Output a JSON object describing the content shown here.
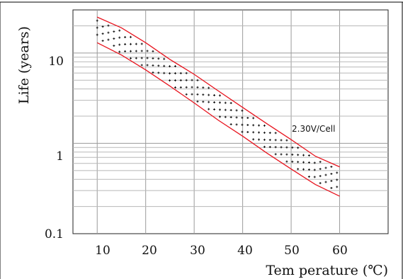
{
  "chart_data": {
    "type": "area",
    "xlabel": "Tem perature (℃)",
    "ylabel": "Life (years)",
    "x_ticks": [
      "10",
      "20",
      "30",
      "40",
      "50",
      "60"
    ],
    "y_ticks": [
      "0.1",
      "1",
      "10"
    ],
    "xlim": [
      5,
      70
    ],
    "ylim": [
      0.1,
      30
    ],
    "y_scale": "log",
    "grid": true,
    "annotation": "2.30V/Cell",
    "series": [
      {
        "x": [
          10,
          15,
          20,
          25,
          30,
          35,
          40,
          45,
          50,
          55,
          60
        ],
        "values": [
          25,
          19,
          13,
          8.5,
          5.8,
          3.8,
          2.5,
          1.65,
          1.1,
          0.72,
          0.55
        ]
      },
      {
        "x": [
          10,
          15,
          20,
          25,
          30,
          35,
          40,
          45,
          50,
          55,
          60
        ],
        "values": [
          13,
          9.5,
          6.5,
          4.3,
          2.8,
          1.8,
          1.2,
          0.78,
          0.52,
          0.35,
          0.26
        ]
      }
    ],
    "colors": {
      "band": "#e8141e",
      "grid": "#9a9a9a",
      "text": "#111111"
    }
  }
}
